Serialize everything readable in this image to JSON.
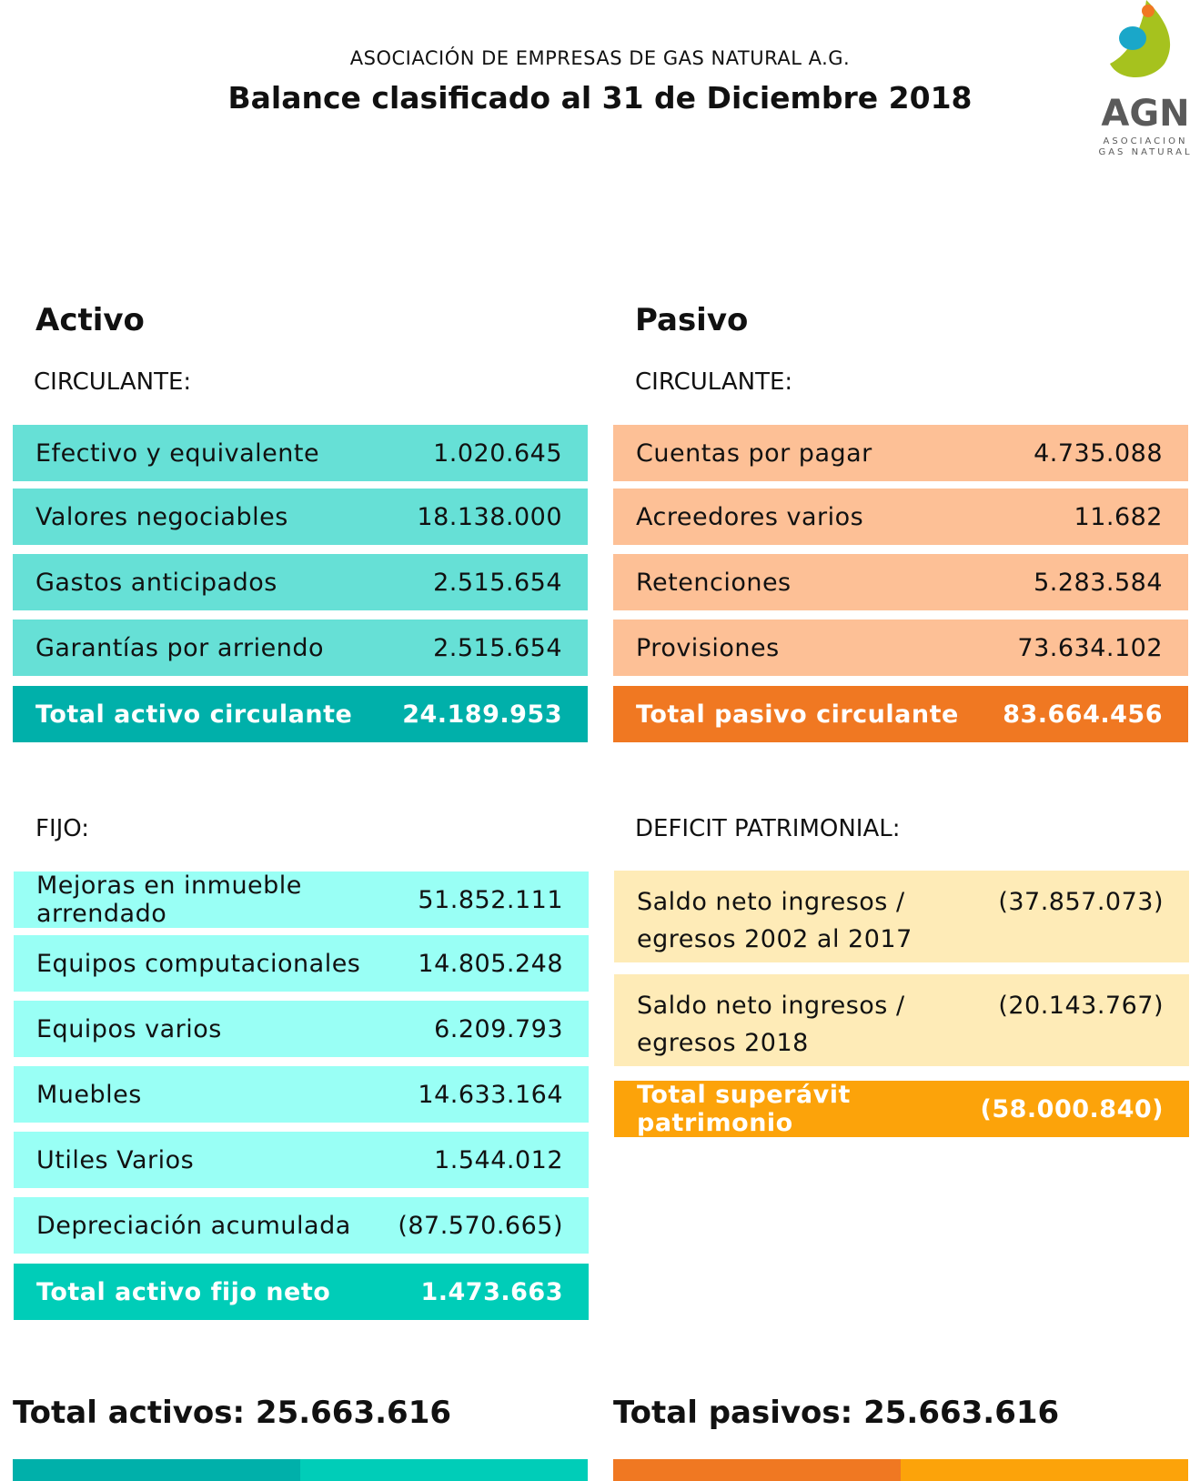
{
  "header": {
    "subtitle": "ASOCIACIÓN DE EMPRESAS DE GAS NATURAL A.G.",
    "title": "Balance clasificado al 31 de Diciembre 2018"
  },
  "logo": {
    "name": "AGN",
    "line1": "ASOCIACION",
    "line2": "GAS NATURAL"
  },
  "activo": {
    "heading": "Activo",
    "circulante": {
      "label": "CIRCULANTE:",
      "rows": [
        [
          "Efectivo y equivalente",
          "1.020.645"
        ],
        [
          "Valores negociables",
          "18.138.000"
        ],
        [
          "Gastos anticipados",
          "2.515.654"
        ],
        [
          "Garantías por arriendo",
          "2.515.654"
        ]
      ],
      "total": [
        "Total activo circulante",
        "24.189.953"
      ]
    },
    "fijo": {
      "label": "FIJO:",
      "rows": [
        [
          "Mejoras en inmueble arrendado",
          "51.852.111"
        ],
        [
          "Equipos computacionales",
          "14.805.248"
        ],
        [
          "Equipos varios",
          "6.209.793"
        ],
        [
          "Muebles",
          "14.633.164"
        ],
        [
          "Utiles Varios",
          "1.544.012"
        ],
        [
          "Depreciación acumulada",
          "(87.570.665)"
        ]
      ],
      "total": [
        "Total activo fijo neto",
        "1.473.663"
      ]
    },
    "grand_total": "Total activos: 25.663.616"
  },
  "pasivo": {
    "heading": "Pasivo",
    "circulante": {
      "label": "CIRCULANTE:",
      "rows": [
        [
          "Cuentas por pagar",
          "4.735.088"
        ],
        [
          "Acreedores varios",
          "11.682"
        ],
        [
          "Retenciones",
          "5.283.584"
        ],
        [
          "Provisiones",
          "73.634.102"
        ]
      ],
      "total": [
        "Total pasivo circulante",
        "83.664.456"
      ]
    },
    "deficit": {
      "label": "DEFICIT PATRIMONIAL:",
      "rows": [
        [
          "Saldo neto ingresos / egresos 2002 al 2017",
          "(37.857.073)"
        ],
        [
          "Saldo neto ingresos / egresos 2018",
          "(20.143.767)"
        ]
      ],
      "total": [
        "Total superávit patrimonio",
        "(58.000.840)"
      ]
    },
    "grand_total": "Total pasivos: 25.663.616"
  }
}
